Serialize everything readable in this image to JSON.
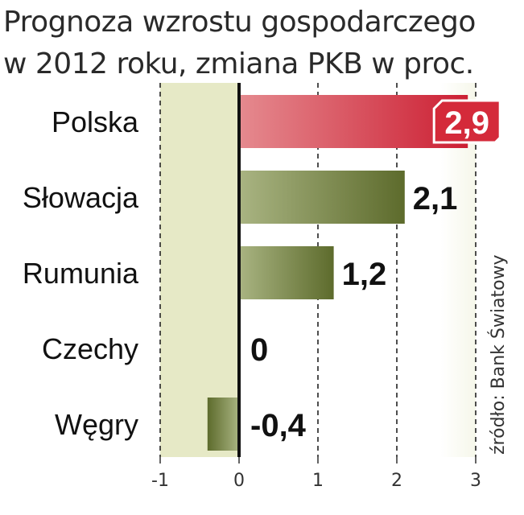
{
  "header": {
    "title_line1": "Prognoza wzrostu gospodarczego",
    "title_line2": "w 2012 roku, zmiana PKB w proc."
  },
  "source": "źródło: Bank Światowy",
  "colors": {
    "highlight_bar": "#d42a3a",
    "other_bars": "#6b7a3a",
    "negative_zone": "#e6e9c6",
    "highlight_label_bg": "#d42a3a"
  },
  "chart_data": {
    "type": "bar",
    "orientation": "horizontal",
    "categories": [
      "Polska",
      "Słowacja",
      "Rumunia",
      "Czechy",
      "Węgry"
    ],
    "values": [
      2.9,
      2.1,
      1.2,
      0,
      -0.4
    ],
    "value_labels": [
      "2,9",
      "2,1",
      "1,2",
      "0",
      "-0,4"
    ],
    "highlight_index": 0,
    "xlim": [
      -1,
      3
    ],
    "x_ticks": [
      -1,
      0,
      1,
      2,
      3
    ],
    "x_tick_labels": [
      "-1",
      "0",
      "1",
      "2",
      "3"
    ],
    "grid": "vertical dashed",
    "title": "Prognoza wzrostu gospodarczego w 2012 roku, zmiana PKB w proc."
  }
}
